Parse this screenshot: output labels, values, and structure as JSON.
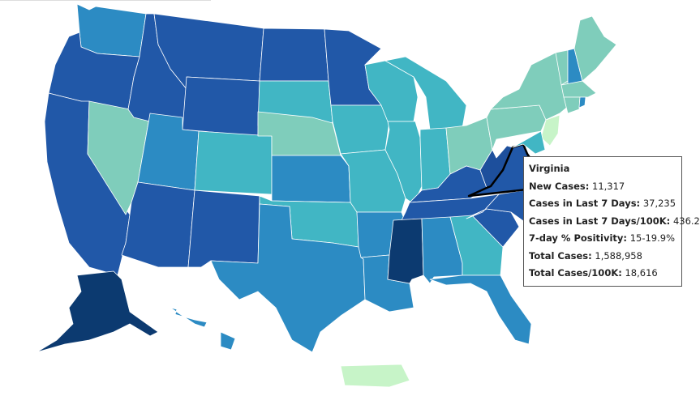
{
  "tooltip": {
    "title": "Virginia",
    "rows": [
      {
        "label": "New Cases:",
        "value": "11,317"
      },
      {
        "label": "Cases in Last 7 Days:",
        "value": "37,235"
      },
      {
        "label": "Cases in Last 7 Days/100K:",
        "value": "436.2"
      },
      {
        "label": "7-day % Positivity:",
        "value": "15-19.9%"
      },
      {
        "label": "Total Cases:",
        "value": "1,588,958"
      },
      {
        "label": "Total Cases/100K:",
        "value": "18,616"
      }
    ]
  }
}
